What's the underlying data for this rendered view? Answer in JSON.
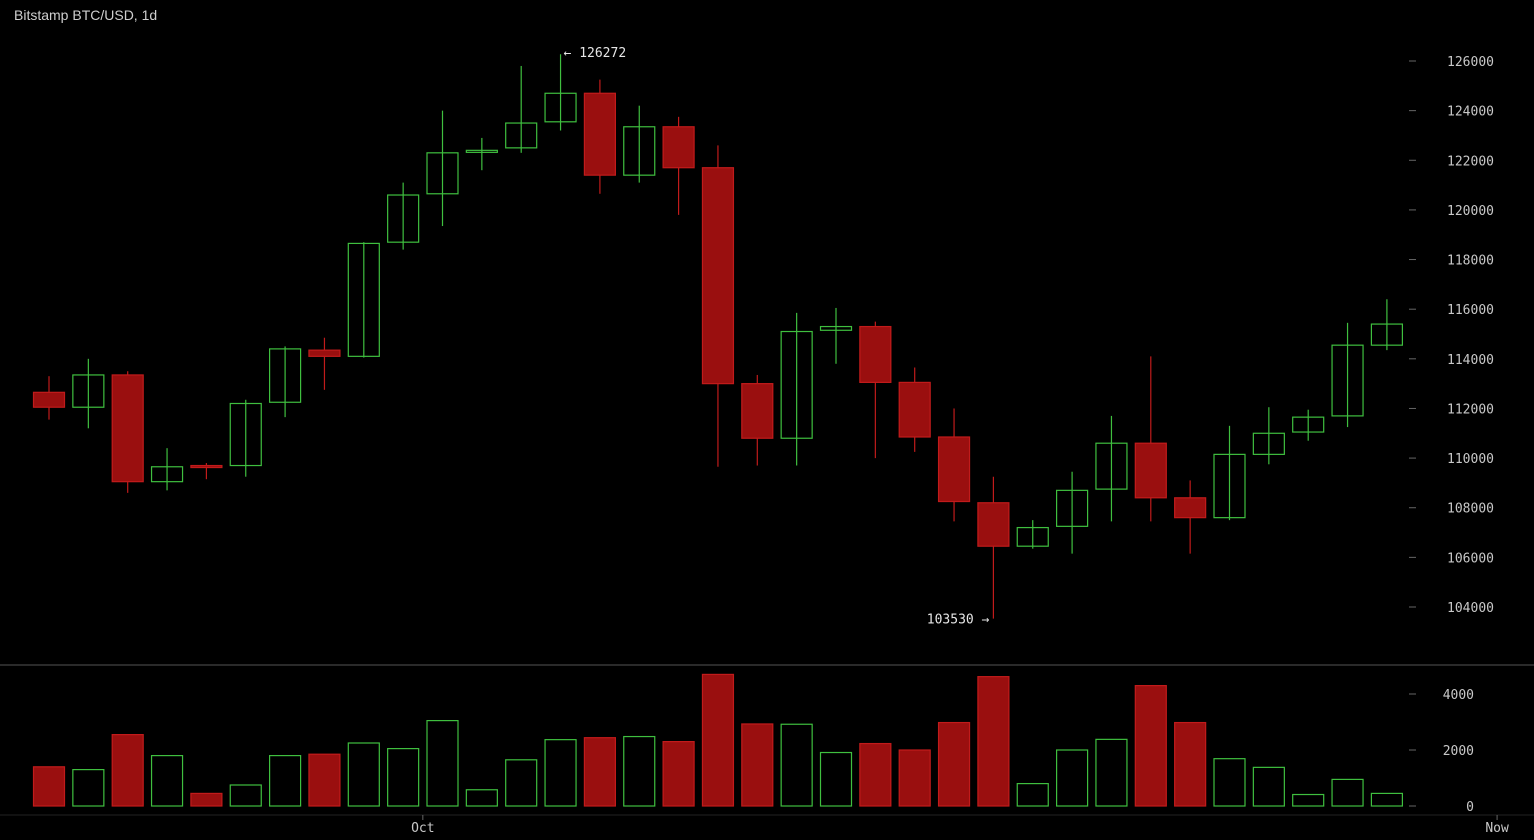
{
  "header": {
    "title": "Bitstamp BTC/USD, 1d"
  },
  "colors": {
    "up": "#3fbf3f",
    "down_fill": "#9a0f0f",
    "down_stroke": "#c11b1b",
    "axis_text": "#c8c8c8",
    "divider": "#555555",
    "background": "#000000"
  },
  "chart_data": [
    {
      "type": "candlestick",
      "title": "Bitstamp BTC/USD, 1d",
      "y_ticks": [
        104000,
        106000,
        108000,
        110000,
        112000,
        114000,
        116000,
        118000,
        120000,
        122000,
        124000,
        126000
      ],
      "ylim": [
        102800,
        127000
      ],
      "x_labels": [
        {
          "index": 9.5,
          "label": "Oct"
        },
        {
          "index": 36.8,
          "label": "Now"
        }
      ],
      "annotations": [
        {
          "label": "← 126272",
          "index": 13,
          "value": 126272,
          "side": "right"
        },
        {
          "label": "103530 →",
          "index": 24,
          "value": 103530,
          "side": "left"
        }
      ],
      "candles": [
        {
          "o": 112650,
          "h": 113300,
          "l": 111550,
          "c": 112050
        },
        {
          "o": 112050,
          "h": 114000,
          "l": 111200,
          "c": 113350
        },
        {
          "o": 113350,
          "h": 113500,
          "l": 108600,
          "c": 109050
        },
        {
          "o": 109050,
          "h": 110400,
          "l": 108700,
          "c": 109650
        },
        {
          "o": 109700,
          "h": 109800,
          "l": 109150,
          "c": 109650
        },
        {
          "o": 109700,
          "h": 112350,
          "l": 109250,
          "c": 112200
        },
        {
          "o": 112250,
          "h": 114500,
          "l": 111650,
          "c": 114400
        },
        {
          "o": 114350,
          "h": 114850,
          "l": 112750,
          "c": 114100
        },
        {
          "o": 114100,
          "h": 118700,
          "l": 114050,
          "c": 118650
        },
        {
          "o": 118700,
          "h": 121100,
          "l": 118400,
          "c": 120600
        },
        {
          "o": 120650,
          "h": 124000,
          "l": 119350,
          "c": 122300
        },
        {
          "o": 122350,
          "h": 122900,
          "l": 121600,
          "c": 122400
        },
        {
          "o": 122500,
          "h": 125800,
          "l": 122300,
          "c": 123500
        },
        {
          "o": 123550,
          "h": 126272,
          "l": 123200,
          "c": 124700
        },
        {
          "o": 124700,
          "h": 125250,
          "l": 120650,
          "c": 121400
        },
        {
          "o": 121400,
          "h": 124200,
          "l": 121100,
          "c": 123350
        },
        {
          "o": 123350,
          "h": 123750,
          "l": 119800,
          "c": 121700
        },
        {
          "o": 121700,
          "h": 122600,
          "l": 109650,
          "c": 113000
        },
        {
          "o": 113000,
          "h": 113350,
          "l": 109700,
          "c": 110800
        },
        {
          "o": 110800,
          "h": 115850,
          "l": 109700,
          "c": 115100
        },
        {
          "o": 115150,
          "h": 116050,
          "l": 113800,
          "c": 115300
        },
        {
          "o": 115300,
          "h": 115500,
          "l": 110000,
          "c": 113050
        },
        {
          "o": 113050,
          "h": 113650,
          "l": 110250,
          "c": 110850
        },
        {
          "o": 110850,
          "h": 112000,
          "l": 107450,
          "c": 108250
        },
        {
          "o": 108200,
          "h": 109250,
          "l": 103530,
          "c": 106450
        },
        {
          "o": 106450,
          "h": 107500,
          "l": 106350,
          "c": 107200
        },
        {
          "o": 107250,
          "h": 109450,
          "l": 106150,
          "c": 108700
        },
        {
          "o": 108750,
          "h": 111700,
          "l": 107450,
          "c": 110600
        },
        {
          "o": 110600,
          "h": 114100,
          "l": 107450,
          "c": 108400
        },
        {
          "o": 108400,
          "h": 109100,
          "l": 106150,
          "c": 107600
        },
        {
          "o": 107600,
          "h": 111300,
          "l": 107500,
          "c": 110150
        },
        {
          "o": 110150,
          "h": 112050,
          "l": 109750,
          "c": 111000
        },
        {
          "o": 111050,
          "h": 111950,
          "l": 110700,
          "c": 111650
        },
        {
          "o": 111700,
          "h": 115450,
          "l": 111250,
          "c": 114550
        },
        {
          "o": 114550,
          "h": 116400,
          "l": 114350,
          "c": 115400
        }
      ]
    },
    {
      "type": "bar",
      "title": "Volume",
      "y_ticks": [
        0,
        2000,
        4000
      ],
      "ylim": [
        0,
        4700
      ],
      "values": [
        1400,
        1300,
        2550,
        1800,
        450,
        750,
        1800,
        1850,
        2250,
        2050,
        3050,
        580,
        1650,
        2370,
        2440,
        2480,
        2300,
        4700,
        2930,
        2920,
        1910,
        2230,
        2000,
        2980,
        4620,
        800,
        2000,
        2380,
        4300,
        2980,
        1690,
        1380,
        410,
        950,
        450
      ],
      "direction": [
        "down",
        "up",
        "down",
        "up",
        "down",
        "up",
        "up",
        "down",
        "up",
        "up",
        "up",
        "up",
        "up",
        "up",
        "down",
        "up",
        "down",
        "down",
        "down",
        "up",
        "up",
        "down",
        "down",
        "down",
        "down",
        "up",
        "up",
        "up",
        "down",
        "down",
        "up",
        "up",
        "up",
        "up",
        "up"
      ]
    }
  ]
}
